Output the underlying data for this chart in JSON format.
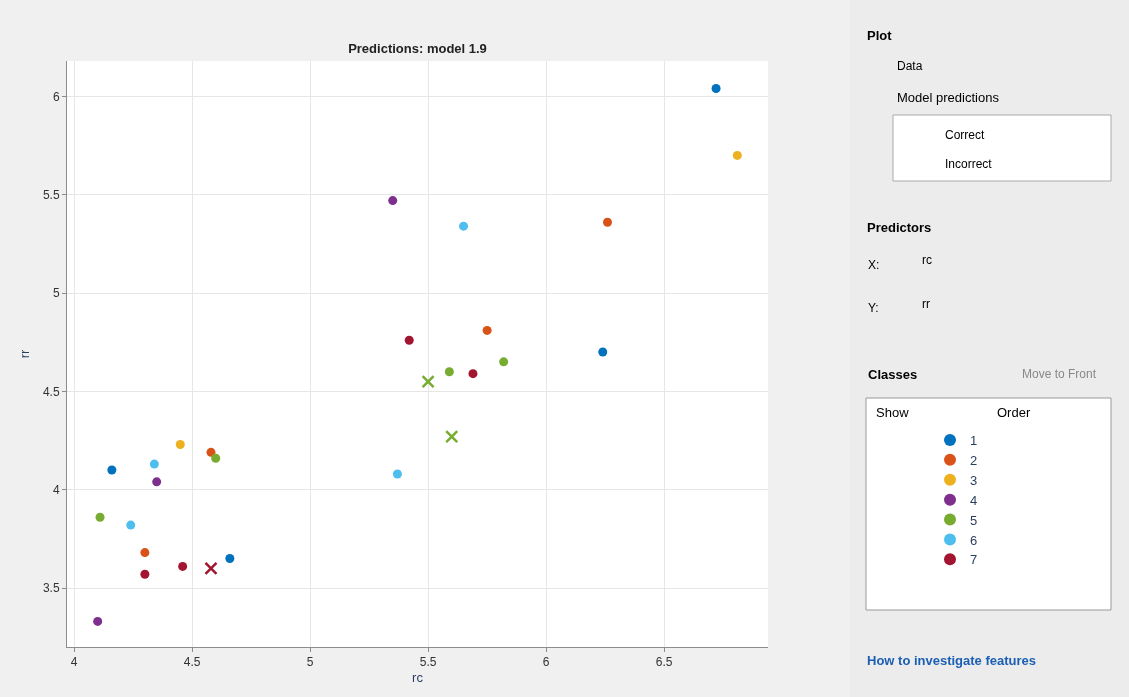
{
  "chart_data": {
    "type": "scatter",
    "title": "Predictions: model 1.9",
    "xlabel": "rc",
    "ylabel": "rr",
    "xlim": [
      3.97,
      6.94
    ],
    "ylim": [
      3.2,
      6.18
    ],
    "xticks": [
      4,
      4.5,
      5,
      5.5,
      6,
      6.5
    ],
    "yticks": [
      3.5,
      4,
      4.5,
      5,
      5.5,
      6
    ],
    "grid": true,
    "marker": "circle",
    "legend": "right",
    "series": [
      {
        "name": "1",
        "color": "#0072bd",
        "x": [
          6.72,
          6.24,
          4.16,
          4.66
        ],
        "values": [
          6.04,
          4.7,
          4.1,
          3.65
        ]
      },
      {
        "name": "2",
        "color": "#d95319",
        "x": [
          6.26,
          5.75,
          4.58,
          4.3
        ],
        "values": [
          5.36,
          4.81,
          4.19,
          3.68
        ]
      },
      {
        "name": "3",
        "color": "#edb120",
        "x": [
          6.81,
          4.45
        ],
        "values": [
          5.7,
          4.23
        ]
      },
      {
        "name": "4",
        "color": "#7e2f8e",
        "x": [
          5.35,
          4.35,
          4.1
        ],
        "values": [
          5.47,
          4.04,
          3.33
        ]
      },
      {
        "name": "5",
        "color": "#77ac30",
        "x": [
          5.82,
          5.59,
          4.6,
          4.11
        ],
        "values": [
          4.65,
          4.6,
          4.16,
          3.86
        ]
      },
      {
        "name": "6",
        "color": "#4dbeee",
        "x": [
          5.65,
          5.37,
          4.34,
          4.24
        ],
        "values": [
          5.34,
          4.08,
          4.13,
          3.82
        ]
      },
      {
        "name": "7",
        "color": "#a2142f",
        "x": [
          5.42,
          5.69,
          4.46,
          4.3
        ],
        "values": [
          4.76,
          4.59,
          3.61,
          3.57
        ]
      },
      {
        "color": "#77ac30",
        "marker": "cross",
        "x": [
          5.5,
          5.6
        ],
        "values": [
          4.55,
          4.27
        ]
      },
      {
        "color": "#a2142f",
        "marker": "cross",
        "x": [
          4.58
        ],
        "values": [
          3.6
        ]
      }
    ],
    "annotations": [
      "Plot",
      "Data",
      "Model predictions",
      "Correct",
      "Incorrect",
      "Predictors",
      "X:",
      "rc",
      "Y:",
      "rr",
      "Classes",
      "Move to Front",
      "Show",
      "Order",
      "How to investigate features"
    ]
  }
}
